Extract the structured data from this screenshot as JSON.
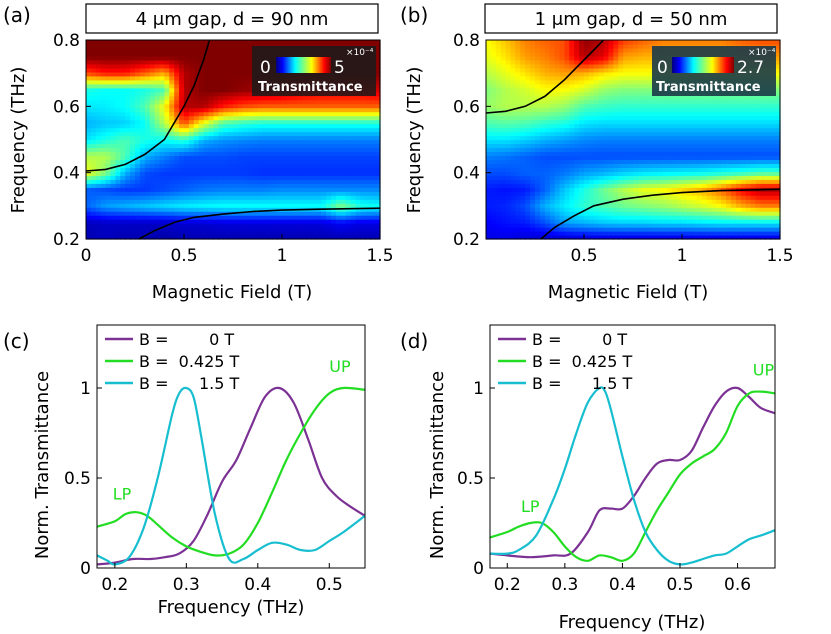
{
  "panels": {
    "a": {
      "label": "(a)",
      "title": "4 μm gap, d = 90 nm"
    },
    "b": {
      "label": "(b)",
      "title": "1 μm gap, d = 50 nm"
    },
    "c": {
      "label": "(c)"
    },
    "d": {
      "label": "(d)"
    }
  },
  "colorbars": {
    "a": {
      "min_label": "0",
      "max_label": "5",
      "exp_label": "×10⁻⁴",
      "title": "Transmittance",
      "max_value": 0.0005
    },
    "b": {
      "min_label": "0",
      "max_label": "2.7",
      "exp_label": "×10⁻⁴",
      "title": "Transmittance",
      "max_value": 0.00027
    }
  },
  "chart_data": [
    {
      "panel": "a",
      "type": "heatmap",
      "title": "4 μm gap, d = 90 nm",
      "xlabel": "Magnetic Field (T)",
      "ylabel": "Frequency (THz)",
      "xlim": [
        0,
        1.5
      ],
      "ylim": [
        0.2,
        0.8
      ],
      "xticks": [
        0,
        0.5,
        1,
        1.5
      ],
      "xtick_labels": [
        "0",
        "0.5",
        "1",
        "1.5"
      ],
      "yticks": [
        0.2,
        0.4,
        0.6,
        0.8
      ],
      "ytick_labels": [
        "0.2",
        "0.4",
        "0.6",
        "0.8"
      ],
      "colorscale": "jet",
      "zlim": [
        0,
        0.0005
      ],
      "x": [
        0,
        0.1,
        0.2,
        0.3,
        0.4,
        0.5,
        0.6,
        0.7,
        0.8,
        0.9,
        1.0,
        1.1,
        1.2,
        1.3,
        1.4,
        1.5
      ],
      "y": [
        0.2,
        0.25,
        0.3,
        0.35,
        0.4,
        0.45,
        0.5,
        0.55,
        0.6,
        0.65,
        0.7,
        0.75,
        0.8
      ],
      "z": [
        [
          0.05,
          0.06,
          0.05,
          0.05,
          0.04,
          0.05,
          0.05,
          0.05,
          0.05,
          0.05,
          0.05,
          0.05,
          0.05,
          0.05,
          0.05,
          0.05
        ],
        [
          0.06,
          0.07,
          0.07,
          0.07,
          0.07,
          0.08,
          0.08,
          0.09,
          0.09,
          0.09,
          0.09,
          0.09,
          0.09,
          0.12,
          0.1,
          0.1
        ],
        [
          0.22,
          0.28,
          0.3,
          0.32,
          0.34,
          0.36,
          0.37,
          0.38,
          0.38,
          0.38,
          0.38,
          0.38,
          0.38,
          0.5,
          0.4,
          0.38
        ],
        [
          0.22,
          0.2,
          0.18,
          0.18,
          0.2,
          0.22,
          0.24,
          0.25,
          0.25,
          0.25,
          0.26,
          0.26,
          0.26,
          0.26,
          0.26,
          0.26
        ],
        [
          0.62,
          0.5,
          0.3,
          0.2,
          0.18,
          0.18,
          0.18,
          0.18,
          0.18,
          0.17,
          0.17,
          0.17,
          0.17,
          0.17,
          0.17,
          0.17
        ],
        [
          0.55,
          0.55,
          0.45,
          0.3,
          0.25,
          0.2,
          0.2,
          0.2,
          0.19,
          0.19,
          0.19,
          0.19,
          0.19,
          0.19,
          0.19,
          0.19
        ],
        [
          0.35,
          0.4,
          0.45,
          0.4,
          0.38,
          0.42,
          0.3,
          0.27,
          0.26,
          0.25,
          0.25,
          0.25,
          0.25,
          0.25,
          0.25,
          0.25
        ],
        [
          0.3,
          0.32,
          0.33,
          0.38,
          0.55,
          0.8,
          0.6,
          0.45,
          0.42,
          0.4,
          0.4,
          0.4,
          0.4,
          0.4,
          0.4,
          0.4
        ],
        [
          0.35,
          0.36,
          0.38,
          0.45,
          0.62,
          0.95,
          0.95,
          0.85,
          0.8,
          0.78,
          0.78,
          0.78,
          0.78,
          0.78,
          0.78,
          0.78
        ],
        [
          0.4,
          0.38,
          0.38,
          0.4,
          0.45,
          0.95,
          1.0,
          1.0,
          0.98,
          0.97,
          0.95,
          0.92,
          0.9,
          0.9,
          0.9,
          0.92
        ],
        [
          0.8,
          0.85,
          0.85,
          0.78,
          0.7,
          0.95,
          1.0,
          1.0,
          1.0,
          1.0,
          1.0,
          1.0,
          1.0,
          1.0,
          1.0,
          1.0
        ],
        [
          1.0,
          1.0,
          1.0,
          1.0,
          1.0,
          1.0,
          1.0,
          1.0,
          1.0,
          1.0,
          1.0,
          1.0,
          1.0,
          1.0,
          1.0,
          1.0
        ],
        [
          1.0,
          1.0,
          1.0,
          1.0,
          1.0,
          1.0,
          1.0,
          1.0,
          1.0,
          1.0,
          1.0,
          1.0,
          1.0,
          1.0,
          1.0,
          1.0
        ]
      ],
      "z_scale_note_max": "5",
      "overlay_curves": {
        "upper": {
          "x": [
            0,
            0.1,
            0.2,
            0.3,
            0.4,
            0.5,
            0.55,
            0.6,
            0.63
          ],
          "y": [
            0.405,
            0.41,
            0.425,
            0.455,
            0.5,
            0.6,
            0.66,
            0.74,
            0.8
          ]
        },
        "lower": {
          "x": [
            0.27,
            0.35,
            0.45,
            0.55,
            0.7,
            0.85,
            1.0,
            1.2,
            1.5
          ],
          "y": [
            0.2,
            0.225,
            0.25,
            0.265,
            0.275,
            0.283,
            0.287,
            0.29,
            0.293
          ]
        }
      }
    },
    {
      "panel": "b",
      "type": "heatmap",
      "title": "1 μm gap, d = 50 nm",
      "xlabel": "Magnetic Field (T)",
      "ylabel": "Frequency (THz)",
      "xlim": [
        0,
        1.5
      ],
      "ylim": [
        0.2,
        0.8
      ],
      "xticks": [
        0.5,
        1,
        1.5
      ],
      "xtick_labels": [
        "0.5",
        "1",
        "1.5"
      ],
      "yticks": [
        0.2,
        0.4,
        0.6,
        0.8
      ],
      "ytick_labels": [
        "0.2",
        "0.4",
        "0.6",
        "0.8"
      ],
      "colorscale": "jet",
      "zlim": [
        0,
        0.00027
      ],
      "x": [
        0,
        0.1,
        0.2,
        0.3,
        0.4,
        0.5,
        0.6,
        0.7,
        0.8,
        0.9,
        1.0,
        1.1,
        1.2,
        1.3,
        1.4,
        1.5
      ],
      "y": [
        0.2,
        0.25,
        0.3,
        0.35,
        0.4,
        0.45,
        0.5,
        0.55,
        0.6,
        0.65,
        0.7,
        0.75,
        0.8
      ],
      "z": [
        [
          0.1,
          0.1,
          0.08,
          0.07,
          0.07,
          0.08,
          0.08,
          0.08,
          0.08,
          0.08,
          0.08,
          0.08,
          0.08,
          0.08,
          0.08,
          0.08
        ],
        [
          0.12,
          0.14,
          0.15,
          0.2,
          0.28,
          0.3,
          0.32,
          0.33,
          0.33,
          0.34,
          0.34,
          0.35,
          0.36,
          0.36,
          0.36,
          0.36
        ],
        [
          0.15,
          0.16,
          0.2,
          0.3,
          0.36,
          0.42,
          0.45,
          0.48,
          0.5,
          0.52,
          0.55,
          0.58,
          0.62,
          0.7,
          0.75,
          0.75
        ],
        [
          0.15,
          0.14,
          0.15,
          0.22,
          0.32,
          0.4,
          0.48,
          0.55,
          0.6,
          0.62,
          0.66,
          0.7,
          0.78,
          0.88,
          0.95,
          0.95
        ],
        [
          0.2,
          0.2,
          0.22,
          0.22,
          0.24,
          0.28,
          0.3,
          0.33,
          0.35,
          0.36,
          0.37,
          0.38,
          0.4,
          0.42,
          0.45,
          0.45
        ],
        [
          0.25,
          0.24,
          0.22,
          0.2,
          0.2,
          0.2,
          0.2,
          0.2,
          0.2,
          0.2,
          0.2,
          0.2,
          0.2,
          0.2,
          0.2,
          0.2
        ],
        [
          0.35,
          0.35,
          0.33,
          0.3,
          0.28,
          0.26,
          0.25,
          0.25,
          0.25,
          0.25,
          0.25,
          0.25,
          0.25,
          0.25,
          0.25,
          0.25
        ],
        [
          0.45,
          0.46,
          0.45,
          0.42,
          0.4,
          0.35,
          0.34,
          0.34,
          0.34,
          0.34,
          0.34,
          0.34,
          0.34,
          0.34,
          0.34,
          0.34
        ],
        [
          0.52,
          0.55,
          0.55,
          0.55,
          0.52,
          0.45,
          0.43,
          0.42,
          0.42,
          0.42,
          0.42,
          0.42,
          0.42,
          0.42,
          0.42,
          0.42
        ],
        [
          0.5,
          0.55,
          0.58,
          0.62,
          0.62,
          0.58,
          0.52,
          0.5,
          0.5,
          0.5,
          0.5,
          0.5,
          0.5,
          0.5,
          0.5,
          0.5
        ],
        [
          0.55,
          0.6,
          0.65,
          0.7,
          0.72,
          0.7,
          0.65,
          0.62,
          0.62,
          0.62,
          0.62,
          0.62,
          0.62,
          0.62,
          0.62,
          0.62
        ],
        [
          0.6,
          0.65,
          0.72,
          0.75,
          0.8,
          0.95,
          0.9,
          0.72,
          0.7,
          0.7,
          0.7,
          0.7,
          0.7,
          0.72,
          0.72,
          0.72
        ],
        [
          0.62,
          0.68,
          0.75,
          0.78,
          0.8,
          0.98,
          0.95,
          0.82,
          0.78,
          0.75,
          0.75,
          0.75,
          0.75,
          0.78,
          0.8,
          0.8
        ]
      ],
      "z_scale_note_max": "2.7",
      "overlay_curves": {
        "upper": {
          "x": [
            0,
            0.1,
            0.2,
            0.3,
            0.4,
            0.5,
            0.55,
            0.6
          ],
          "y": [
            0.58,
            0.585,
            0.6,
            0.63,
            0.68,
            0.74,
            0.77,
            0.8
          ]
        },
        "lower": {
          "x": [
            0.28,
            0.35,
            0.45,
            0.55,
            0.7,
            0.85,
            1.0,
            1.2,
            1.5
          ],
          "y": [
            0.2,
            0.235,
            0.27,
            0.3,
            0.32,
            0.332,
            0.34,
            0.346,
            0.35
          ]
        }
      }
    },
    {
      "panel": "c",
      "type": "line",
      "xlabel": "Frequency (THz)",
      "ylabel": "Norm. Transmittance",
      "xlim": [
        0.175,
        0.55
      ],
      "ylim": [
        0,
        1.35
      ],
      "xticks": [
        0.2,
        0.3,
        0.4,
        0.5
      ],
      "xtick_labels": [
        "0.2",
        "0.3",
        "0.4",
        "0.5"
      ],
      "yticks": [
        0,
        0.5,
        1
      ],
      "ytick_labels": [
        "0",
        "0.5",
        "1"
      ],
      "legend_position": "top-left",
      "annotations": [
        {
          "text": "LP",
          "x": 0.21,
          "y": 0.38,
          "color": "#22dd22"
        },
        {
          "text": "UP",
          "x": 0.515,
          "y": 1.09,
          "color": "#22dd22"
        }
      ],
      "series": [
        {
          "name": "B =        0 T",
          "color": "#7b3294",
          "x": [
            0.175,
            0.2,
            0.225,
            0.25,
            0.27,
            0.29,
            0.31,
            0.33,
            0.35,
            0.37,
            0.39,
            0.41,
            0.43,
            0.45,
            0.47,
            0.49,
            0.51,
            0.53,
            0.55
          ],
          "y": [
            0.02,
            0.03,
            0.05,
            0.05,
            0.06,
            0.08,
            0.15,
            0.3,
            0.48,
            0.6,
            0.78,
            0.95,
            1.0,
            0.92,
            0.72,
            0.5,
            0.4,
            0.34,
            0.29
          ]
        },
        {
          "name": "B =  0.425 T",
          "color": "#22dd22",
          "x": [
            0.175,
            0.2,
            0.215,
            0.23,
            0.245,
            0.26,
            0.28,
            0.3,
            0.32,
            0.34,
            0.36,
            0.38,
            0.4,
            0.42,
            0.44,
            0.46,
            0.48,
            0.5,
            0.52,
            0.55
          ],
          "y": [
            0.23,
            0.26,
            0.3,
            0.31,
            0.29,
            0.24,
            0.17,
            0.12,
            0.09,
            0.07,
            0.08,
            0.13,
            0.25,
            0.42,
            0.6,
            0.75,
            0.88,
            0.97,
            1.0,
            0.99
          ]
        },
        {
          "name": "B =      1.5 T",
          "color": "#17becf",
          "x": [
            0.175,
            0.19,
            0.2,
            0.22,
            0.24,
            0.26,
            0.28,
            0.29,
            0.3,
            0.31,
            0.32,
            0.34,
            0.36,
            0.38,
            0.4,
            0.42,
            0.44,
            0.46,
            0.48,
            0.5,
            0.52,
            0.55
          ],
          "y": [
            0.07,
            0.04,
            0.02,
            0.06,
            0.22,
            0.5,
            0.85,
            0.97,
            1.0,
            0.95,
            0.75,
            0.3,
            0.05,
            0.05,
            0.1,
            0.14,
            0.13,
            0.1,
            0.1,
            0.15,
            0.2,
            0.29
          ]
        }
      ]
    },
    {
      "panel": "d",
      "type": "line",
      "xlabel": "Frequency (THz)",
      "ylabel": "Norm. Transmittance",
      "xlim": [
        0.17,
        0.665
      ],
      "ylim": [
        0,
        1.35
      ],
      "xticks": [
        0.2,
        0.3,
        0.4,
        0.5,
        0.6
      ],
      "xtick_labels": [
        "0.2",
        "0.3",
        "0.4",
        "0.5",
        "0.6"
      ],
      "yticks": [
        0,
        0.5,
        1
      ],
      "ytick_labels": [
        "0",
        "0.5",
        "1"
      ],
      "legend_position": "top-left",
      "annotations": [
        {
          "text": "LP",
          "x": 0.24,
          "y": 0.31,
          "color": "#22dd22"
        },
        {
          "text": "UP",
          "x": 0.645,
          "y": 1.07,
          "color": "#22dd22"
        }
      ],
      "series": [
        {
          "name": "B =        0 T",
          "color": "#7b3294",
          "x": [
            0.17,
            0.2,
            0.24,
            0.28,
            0.31,
            0.34,
            0.36,
            0.38,
            0.4,
            0.42,
            0.44,
            0.46,
            0.48,
            0.5,
            0.52,
            0.54,
            0.56,
            0.58,
            0.6,
            0.62,
            0.64,
            0.665
          ],
          "y": [
            0.08,
            0.07,
            0.06,
            0.07,
            0.08,
            0.2,
            0.32,
            0.33,
            0.33,
            0.4,
            0.5,
            0.58,
            0.6,
            0.6,
            0.65,
            0.78,
            0.9,
            0.98,
            1.0,
            0.95,
            0.89,
            0.86
          ]
        },
        {
          "name": "B =  0.425 T",
          "color": "#22dd22",
          "x": [
            0.17,
            0.2,
            0.22,
            0.24,
            0.26,
            0.28,
            0.3,
            0.32,
            0.34,
            0.36,
            0.38,
            0.4,
            0.42,
            0.44,
            0.46,
            0.48,
            0.5,
            0.52,
            0.54,
            0.56,
            0.58,
            0.6,
            0.62,
            0.64,
            0.665
          ],
          "y": [
            0.17,
            0.2,
            0.23,
            0.25,
            0.25,
            0.2,
            0.12,
            0.06,
            0.04,
            0.07,
            0.06,
            0.04,
            0.08,
            0.2,
            0.32,
            0.42,
            0.52,
            0.58,
            0.62,
            0.66,
            0.75,
            0.9,
            0.97,
            0.98,
            0.97
          ]
        },
        {
          "name": "B =      1.5 T",
          "color": "#17becf",
          "x": [
            0.17,
            0.2,
            0.22,
            0.25,
            0.28,
            0.3,
            0.32,
            0.34,
            0.36,
            0.37,
            0.38,
            0.4,
            0.42,
            0.44,
            0.46,
            0.48,
            0.5,
            0.52,
            0.54,
            0.56,
            0.58,
            0.6,
            0.62,
            0.64,
            0.665
          ],
          "y": [
            0.08,
            0.08,
            0.1,
            0.18,
            0.38,
            0.55,
            0.75,
            0.92,
            1.0,
            0.98,
            0.88,
            0.62,
            0.38,
            0.2,
            0.1,
            0.04,
            0.02,
            0.03,
            0.05,
            0.07,
            0.08,
            0.12,
            0.16,
            0.18,
            0.21
          ]
        }
      ]
    }
  ]
}
